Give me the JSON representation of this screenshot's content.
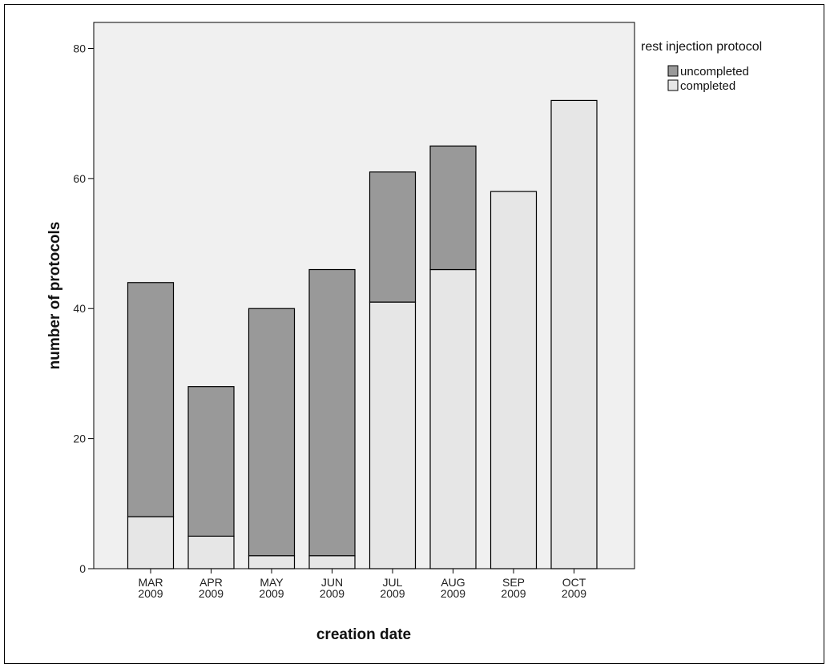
{
  "chart_data": {
    "type": "bar",
    "stacked": true,
    "xlabel": "creation date",
    "ylabel": "number of protocols",
    "ylim": [
      0,
      84
    ],
    "yticks": [
      0,
      20,
      40,
      60,
      80
    ],
    "categories": [
      [
        "MAR",
        "2009"
      ],
      [
        "APR",
        "2009"
      ],
      [
        "MAY",
        "2009"
      ],
      [
        "JUN",
        "2009"
      ],
      [
        "JUL",
        "2009"
      ],
      [
        "AUG",
        "2009"
      ],
      [
        "SEP",
        "2009"
      ],
      [
        "OCT",
        "2009"
      ]
    ],
    "series": [
      {
        "name": "completed",
        "color": "#e6e6e6",
        "values": [
          8,
          5,
          2,
          2,
          41,
          46,
          58,
          72
        ]
      },
      {
        "name": "uncompleted",
        "color": "#999999",
        "values": [
          36,
          23,
          38,
          44,
          20,
          19,
          0,
          0
        ]
      }
    ],
    "legend": {
      "title": "rest injection protocol",
      "placement": "top-right",
      "order": [
        "uncompleted",
        "completed"
      ]
    },
    "plot_background": "#f0f0f0",
    "grid": false
  }
}
